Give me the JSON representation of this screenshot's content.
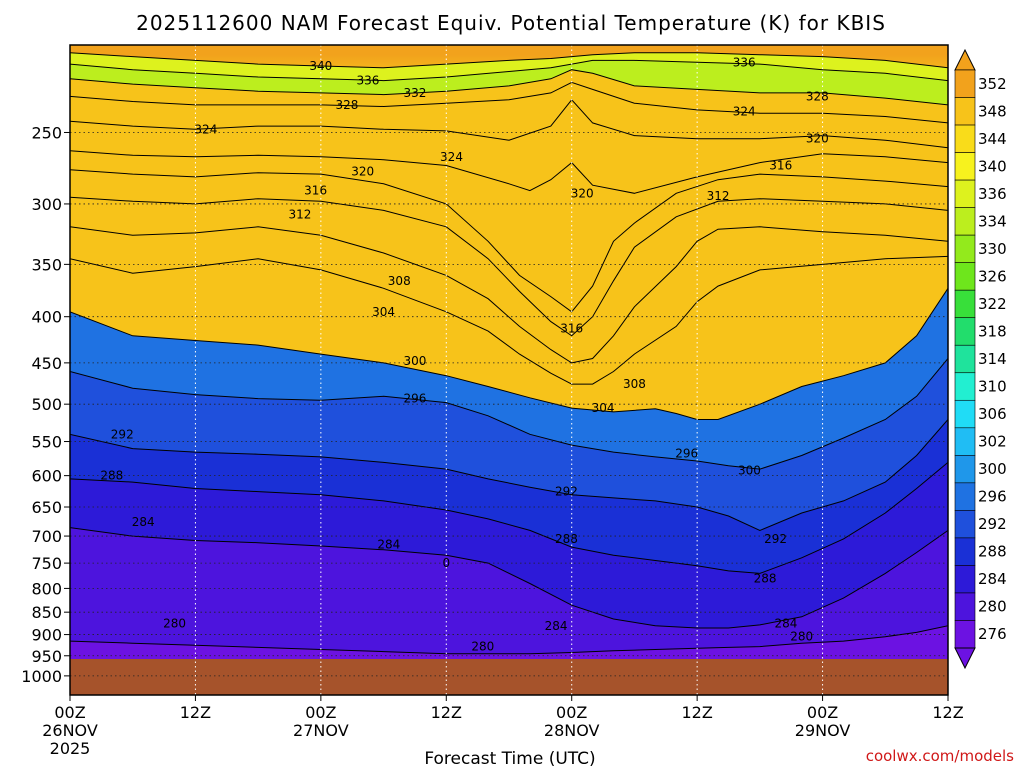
{
  "title": "2025112600 NAM Forecast Equiv. Potential Temperature (K) for KBIS",
  "credit": "coolwx.com/models",
  "chart_data": {
    "type": "heatmap",
    "title": "2025112600 NAM Forecast Equiv. Potential Temperature (K) for KBIS",
    "xlabel": "Forecast Time (UTC)",
    "ylabel": "",
    "x_range_hours": [
      0,
      84
    ],
    "y_range_hpa": [
      200,
      1050
    ],
    "y_scale": "log",
    "grid": "dotted",
    "x_ticks": [
      {
        "hour": 0,
        "label": "00Z",
        "sub1": "26NOV",
        "sub2": "2025"
      },
      {
        "hour": 12,
        "label": "12Z",
        "sub1": "",
        "sub2": ""
      },
      {
        "hour": 24,
        "label": "00Z",
        "sub1": "27NOV",
        "sub2": ""
      },
      {
        "hour": 36,
        "label": "12Z",
        "sub1": "",
        "sub2": ""
      },
      {
        "hour": 48,
        "label": "00Z",
        "sub1": "28NOV",
        "sub2": ""
      },
      {
        "hour": 60,
        "label": "12Z",
        "sub1": "",
        "sub2": ""
      },
      {
        "hour": 72,
        "label": "00Z",
        "sub1": "29NOV",
        "sub2": ""
      },
      {
        "hour": 84,
        "label": "12Z",
        "sub1": "",
        "sub2": ""
      }
    ],
    "y_ticks": [
      250,
      300,
      350,
      400,
      450,
      500,
      550,
      600,
      650,
      700,
      750,
      800,
      850,
      900,
      950,
      1000
    ],
    "surface_pressure_hpa": 958,
    "colorbar": {
      "labels": [
        "352",
        "348",
        "344",
        "340",
        "336",
        "334",
        "330",
        "326",
        "322",
        "318",
        "314",
        "310",
        "306",
        "302",
        "300",
        "296",
        "292",
        "288",
        "284",
        "280",
        "276"
      ],
      "colors": [
        "#f2a21c",
        "#f7c31a",
        "#f9dc1a",
        "#f7f21e",
        "#ddf21e",
        "#bcee1e",
        "#93ea1c",
        "#6ee61c",
        "#38df3a",
        "#22dd6c",
        "#1fe39c",
        "#22efd1",
        "#20dcf6",
        "#20bdf4",
        "#1f97ea",
        "#1f72e2",
        "#1f50dc",
        "#1a30d6",
        "#2d1ad8",
        "#4d14dd",
        "#6c12e2"
      ],
      "extend": "both"
    },
    "field_colors": {
      "surface": "#a6532b"
    },
    "contours": [
      {
        "value": 340,
        "x_hr": [
          0,
          6,
          12,
          18,
          24,
          30,
          36,
          42,
          46,
          48,
          50,
          54,
          60,
          66,
          72,
          78,
          84
        ],
        "y_hpa": [
          204,
          206,
          208,
          210,
          211,
          212,
          210,
          208,
          207,
          206,
          205,
          204,
          204,
          205,
          206,
          208,
          212
        ]
      },
      {
        "value": 336,
        "x_hr": [
          0,
          6,
          12,
          18,
          24,
          30,
          36,
          42,
          46,
          48,
          50,
          54,
          60,
          66,
          72,
          78,
          84
        ],
        "y_hpa": [
          210,
          213,
          215,
          217,
          218,
          219,
          217,
          214,
          212,
          210,
          208,
          208,
          209,
          210,
          213,
          215,
          219
        ]
      },
      {
        "value": 332,
        "x_hr": [
          0,
          6,
          12,
          18,
          24,
          30,
          36,
          42,
          46,
          48,
          50,
          54,
          60,
          66,
          72,
          78,
          84
        ],
        "y_hpa": [
          218,
          221,
          223,
          225,
          226,
          227,
          225,
          222,
          218,
          213,
          215,
          222,
          224,
          226,
          226,
          229,
          233
        ]
      },
      {
        "value": 328,
        "x_hr": [
          0,
          6,
          12,
          18,
          24,
          30,
          36,
          42,
          46,
          48,
          50,
          54,
          60,
          66,
          72,
          78,
          84
        ],
        "y_hpa": [
          228,
          231,
          233,
          233,
          233,
          234,
          232,
          230,
          226,
          220,
          224,
          232,
          236,
          238,
          238,
          240,
          244
        ]
      },
      {
        "value": 324,
        "x_hr": [
          0,
          6,
          12,
          18,
          24,
          30,
          36,
          42,
          46,
          48,
          50,
          54,
          60,
          66,
          72,
          78,
          84
        ],
        "y_hpa": [
          243,
          246,
          248,
          246,
          246,
          248,
          249,
          255,
          246,
          230,
          244,
          252,
          254,
          254,
          252,
          255,
          260
        ]
      },
      {
        "value": 320,
        "x_hr": [
          0,
          6,
          12,
          18,
          24,
          30,
          36,
          42,
          44,
          46,
          48,
          50,
          54,
          60,
          66,
          72,
          78,
          84
        ],
        "y_hpa": [
          262,
          265,
          266,
          265,
          266,
          268,
          272,
          285,
          290,
          282,
          270,
          286,
          292,
          280,
          270,
          264,
          266,
          270
        ]
      },
      {
        "value": 316,
        "x_hr": [
          0,
          6,
          12,
          18,
          24,
          30,
          36,
          40,
          43,
          46,
          48,
          50,
          52,
          54,
          58,
          62,
          66,
          72,
          78,
          84
        ],
        "y_hpa": [
          275,
          278,
          280,
          277,
          278,
          285,
          300,
          330,
          360,
          380,
          395,
          370,
          330,
          315,
          292,
          282,
          278,
          280,
          283,
          287
        ]
      },
      {
        "value": 312,
        "x_hr": [
          0,
          6,
          12,
          18,
          24,
          30,
          36,
          40,
          43,
          46,
          48,
          50,
          52,
          54,
          58,
          62,
          66,
          72,
          78,
          84
        ],
        "y_hpa": [
          295,
          298,
          300,
          296,
          298,
          305,
          318,
          345,
          375,
          405,
          420,
          400,
          365,
          335,
          310,
          298,
          296,
          298,
          300,
          305
        ]
      },
      {
        "value": 308,
        "x_hr": [
          0,
          6,
          12,
          18,
          24,
          30,
          36,
          40,
          43,
          46,
          48,
          50,
          52,
          54,
          58,
          60,
          62,
          66,
          72,
          78,
          84
        ],
        "y_hpa": [
          318,
          325,
          323,
          318,
          325,
          340,
          360,
          382,
          410,
          435,
          450,
          445,
          420,
          390,
          352,
          330,
          320,
          318,
          322,
          325,
          330
        ]
      },
      {
        "value": 304,
        "x_hr": [
          0,
          6,
          12,
          18,
          24,
          30,
          36,
          40,
          43,
          46,
          48,
          50,
          52,
          54,
          58,
          60,
          62,
          66,
          72,
          78,
          84
        ],
        "y_hpa": [
          345,
          358,
          352,
          345,
          355,
          372,
          395,
          415,
          440,
          462,
          475,
          475,
          460,
          440,
          410,
          385,
          370,
          355,
          350,
          345,
          343
        ]
      },
      {
        "value": 300,
        "x_hr": [
          0,
          6,
          12,
          18,
          24,
          30,
          36,
          40,
          44,
          48,
          52,
          56,
          58,
          60,
          62,
          66,
          70,
          74,
          78,
          81,
          84
        ],
        "y_hpa": [
          395,
          420,
          425,
          430,
          440,
          450,
          465,
          478,
          492,
          505,
          510,
          506,
          512,
          520,
          520,
          500,
          478,
          465,
          450,
          420,
          372
        ]
      },
      {
        "value": 296,
        "x_hr": [
          0,
          6,
          12,
          18,
          24,
          30,
          36,
          40,
          44,
          48,
          52,
          56,
          60,
          63,
          66,
          70,
          74,
          78,
          81,
          84
        ],
        "y_hpa": [
          460,
          480,
          488,
          493,
          495,
          490,
          498,
          515,
          540,
          555,
          565,
          572,
          578,
          585,
          590,
          570,
          545,
          520,
          490,
          445
        ]
      },
      {
        "value": 292,
        "x_hr": [
          0,
          6,
          12,
          18,
          24,
          30,
          36,
          40,
          44,
          48,
          52,
          56,
          60,
          63,
          66,
          70,
          74,
          78,
          81,
          84
        ],
        "y_hpa": [
          540,
          560,
          565,
          568,
          572,
          580,
          590,
          605,
          618,
          630,
          635,
          640,
          650,
          665,
          690,
          660,
          640,
          610,
          570,
          520
        ]
      },
      {
        "value": 288,
        "x_hr": [
          0,
          6,
          12,
          18,
          24,
          30,
          36,
          40,
          44,
          48,
          52,
          56,
          60,
          63,
          66,
          70,
          74,
          78,
          81,
          84
        ],
        "y_hpa": [
          605,
          610,
          620,
          625,
          630,
          640,
          655,
          670,
          690,
          720,
          735,
          745,
          755,
          765,
          770,
          740,
          705,
          660,
          620,
          580
        ]
      },
      {
        "value": 284,
        "x_hr": [
          0,
          6,
          12,
          18,
          24,
          30,
          36,
          40,
          44,
          48,
          52,
          56,
          60,
          63,
          66,
          70,
          74,
          78,
          81,
          84
        ],
        "y_hpa": [
          685,
          700,
          708,
          712,
          718,
          725,
          735,
          750,
          790,
          835,
          865,
          880,
          885,
          885,
          878,
          860,
          820,
          770,
          730,
          690
        ]
      },
      {
        "value": 280,
        "x_hr": [
          0,
          6,
          12,
          18,
          24,
          30,
          36,
          40,
          44,
          48,
          52,
          56,
          60,
          63,
          66,
          70,
          74,
          78,
          81,
          84
        ],
        "y_hpa": [
          915,
          920,
          925,
          930,
          935,
          940,
          945,
          945,
          945,
          942,
          938,
          935,
          932,
          930,
          928,
          920,
          915,
          905,
          895,
          880
        ]
      }
    ],
    "contour_labels": [
      {
        "text": "340",
        "x_hr": 24,
        "y_hpa": 211
      },
      {
        "text": "336",
        "x_hr": 28.5,
        "y_hpa": 219
      },
      {
        "text": "332",
        "x_hr": 33,
        "y_hpa": 226
      },
      {
        "text": "336",
        "x_hr": 64.5,
        "y_hpa": 209
      },
      {
        "text": "328",
        "x_hr": 26.5,
        "y_hpa": 233
      },
      {
        "text": "324",
        "x_hr": 64.5,
        "y_hpa": 237
      },
      {
        "text": "328",
        "x_hr": 71.5,
        "y_hpa": 228
      },
      {
        "text": "324",
        "x_hr": 13,
        "y_hpa": 248
      },
      {
        "text": "324",
        "x_hr": 36.5,
        "y_hpa": 266
      },
      {
        "text": "320",
        "x_hr": 71.5,
        "y_hpa": 254
      },
      {
        "text": "320",
        "x_hr": 28,
        "y_hpa": 276
      },
      {
        "text": "316",
        "x_hr": 68,
        "y_hpa": 272
      },
      {
        "text": "320",
        "x_hr": 49,
        "y_hpa": 292
      },
      {
        "text": "316",
        "x_hr": 23.5,
        "y_hpa": 290
      },
      {
        "text": "312",
        "x_hr": 62,
        "y_hpa": 294
      },
      {
        "text": "312",
        "x_hr": 22,
        "y_hpa": 308
      },
      {
        "text": "308",
        "x_hr": 31.5,
        "y_hpa": 365
      },
      {
        "text": "304",
        "x_hr": 30,
        "y_hpa": 395
      },
      {
        "text": "316",
        "x_hr": 48,
        "y_hpa": 412
      },
      {
        "text": "300",
        "x_hr": 33,
        "y_hpa": 448
      },
      {
        "text": "308",
        "x_hr": 54,
        "y_hpa": 475
      },
      {
        "text": "296",
        "x_hr": 33,
        "y_hpa": 493
      },
      {
        "text": "304",
        "x_hr": 51,
        "y_hpa": 505
      },
      {
        "text": "292",
        "x_hr": 5,
        "y_hpa": 540
      },
      {
        "text": "296",
        "x_hr": 59,
        "y_hpa": 567
      },
      {
        "text": "300",
        "x_hr": 65,
        "y_hpa": 592
      },
      {
        "text": "288",
        "x_hr": 4,
        "y_hpa": 600
      },
      {
        "text": "292",
        "x_hr": 47.5,
        "y_hpa": 625
      },
      {
        "text": "284",
        "x_hr": 7,
        "y_hpa": 675
      },
      {
        "text": "292",
        "x_hr": 67.5,
        "y_hpa": 705
      },
      {
        "text": "284",
        "x_hr": 30.5,
        "y_hpa": 715
      },
      {
        "text": "288",
        "x_hr": 47.5,
        "y_hpa": 705
      },
      {
        "text": "0",
        "x_hr": 36,
        "y_hpa": 750
      },
      {
        "text": "288",
        "x_hr": 66.5,
        "y_hpa": 780
      },
      {
        "text": "280",
        "x_hr": 10,
        "y_hpa": 875
      },
      {
        "text": "284",
        "x_hr": 46.5,
        "y_hpa": 880
      },
      {
        "text": "284",
        "x_hr": 68.5,
        "y_hpa": 875
      },
      {
        "text": "280",
        "x_hr": 70,
        "y_hpa": 905
      },
      {
        "text": "280",
        "x_hr": 39.5,
        "y_hpa": 928
      }
    ]
  }
}
